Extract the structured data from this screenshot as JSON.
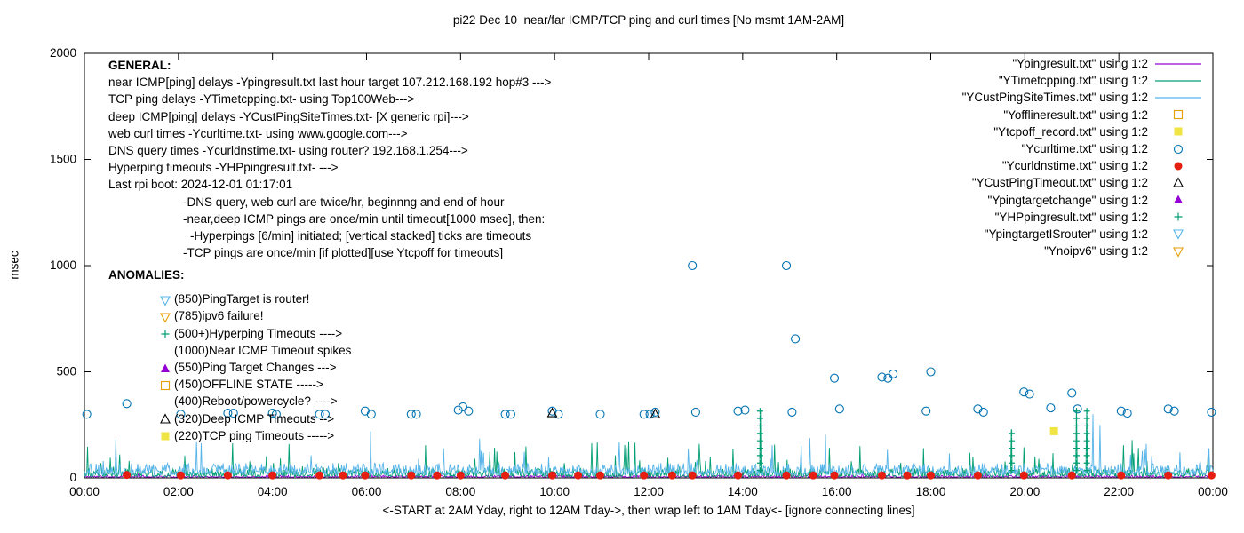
{
  "title": "pi22 Dec 10  near/far ICMP/TCP ping and curl times [No msmt 1AM-2AM]",
  "ylabel": "msec",
  "xlabel": "<-START at 2AM Yday, right to 12AM Tday->, then wrap left to 1AM Tday<- [ignore connecting lines]",
  "general": {
    "heading": "GENERAL:",
    "lines": [
      {
        "indent": 0,
        "text": "near ICMP[ping] delays -Ypingresult.txt last hour target 107.212.168.192 hop#3 --->"
      },
      {
        "indent": 0,
        "text": "TCP ping delays -YTimetcpping.txt- using Top100Web--->"
      },
      {
        "indent": 0,
        "text": "deep ICMP[ping] delays -YCustPingSiteTimes.txt- [X generic rpi]--->"
      },
      {
        "indent": 0,
        "text": "web curl times -Ycurltime.txt- using www.google.com--->"
      },
      {
        "indent": 0,
        "text": "DNS query times -Ycurldnstime.txt- using router? 192.168.1.254--->"
      },
      {
        "indent": 0,
        "text": "Hyperping timeouts -YHPpingresult.txt- --->"
      },
      {
        "indent": 0,
        "text": "Last rpi boot: 2024-12-01 01:17:01"
      },
      {
        "indent": 1,
        "text": "-DNS query, web curl are twice/hr, beginnng and end of hour"
      },
      {
        "indent": 1,
        "text": "-near,deep ICMP pings are once/min until timeout[1000 msec], then:"
      },
      {
        "indent": 2,
        "text": "-Hyperpings [6/min] initiated; [vertical stacked] ticks are timeouts"
      },
      {
        "indent": 1,
        "text": "-TCP pings are once/min [if plotted][use Ytcpoff for timeouts]"
      }
    ]
  },
  "anomalies": {
    "heading": "ANOMALIES:",
    "items": [
      {
        "marker": "triangle-down-open",
        "color": "#56B4E9",
        "text": "(850)PingTarget is router!"
      },
      {
        "marker": "triangle-down-open",
        "color": "#E69F00",
        "text": "(785)ipv6 failure!"
      },
      {
        "marker": "plus",
        "color": "#009E73",
        "text": "(500+)Hyperping Timeouts ---->"
      },
      {
        "marker": null,
        "color": null,
        "text": "(1000)Near ICMP Timeout spikes"
      },
      {
        "marker": "triangle-filled",
        "color": "#9400D3",
        "text": "(550)Ping Target Changes --->"
      },
      {
        "marker": "square-open",
        "color": "#E69F00",
        "text": "(450)OFFLINE STATE ----->"
      },
      {
        "marker": null,
        "color": null,
        "text": "(400)Reboot/powercycle? ---->"
      },
      {
        "marker": "triangle-open",
        "color": "#000000",
        "text": "(320)Deep ICMP Timeouts -->"
      },
      {
        "marker": "square-filled",
        "color": "#F0E442",
        "text": "(220)TCP ping Timeouts ----->"
      }
    ]
  },
  "legend": [
    {
      "label": "\"Ypingresult.txt\" using 1:2",
      "sample": "line",
      "color": "#9400D3"
    },
    {
      "label": "\"YTimetcpping.txt\" using 1:2",
      "sample": "line",
      "color": "#009E73"
    },
    {
      "label": "\"YCustPingSiteTimes.txt\" using 1:2",
      "sample": "line",
      "color": "#56B4E9"
    },
    {
      "label": "\"Yofflineresult.txt\" using 1:2",
      "sample": "square-open",
      "color": "#E69F00"
    },
    {
      "label": "\"Ytcpoff_record.txt\" using 1:2",
      "sample": "square-filled",
      "color": "#F0E442"
    },
    {
      "label": "\"Ycurltime.txt\" using 1:2",
      "sample": "circle-open",
      "color": "#0072B2"
    },
    {
      "label": "\"Ycurldnstime.txt\" using 1:2",
      "sample": "circle-filled",
      "color": "#E51E10"
    },
    {
      "label": "\"YCustPingTimeout.txt\" using 1:2",
      "sample": "triangle-open",
      "color": "#000000"
    },
    {
      "label": "\"Ypingtargetchange\" using 1:2",
      "sample": "triangle-filled",
      "color": "#9400D3"
    },
    {
      "label": "\"YHPpingresult.txt\" using 1:2",
      "sample": "plus",
      "color": "#009E73"
    },
    {
      "label": "\"YpingtargetISrouter\" using 1:2",
      "sample": "triangle-down-open",
      "color": "#56B4E9"
    },
    {
      "label": "\"Ynoipv6\" using 1:2",
      "sample": "triangle-down-open",
      "color": "#E69F00"
    }
  ],
  "chart_data": {
    "type": "scatter",
    "title": "pi22 Dec 10  near/far ICMP/TCP ping and curl times [No msmt 1AM-2AM]",
    "xlabel": "<-START at 2AM Yday, right to 12AM Tday->, then wrap left to 1AM Tday<- [ignore connecting lines]",
    "ylabel": "msec",
    "xlim_hours": [
      0,
      24
    ],
    "ylim": [
      0,
      2000
    ],
    "x_ticks": [
      "00:00",
      "02:00",
      "04:00",
      "06:00",
      "08:00",
      "10:00",
      "12:00",
      "14:00",
      "16:00",
      "18:00",
      "20:00",
      "22:00",
      "00:00"
    ],
    "y_ticks": [
      0,
      500,
      1000,
      1500,
      2000
    ],
    "grid": false,
    "legend_position": "top-right-inside",
    "series": [
      {
        "name": "Ypingresult.txt",
        "style": "line",
        "color": "#9400D3",
        "noise": {
          "seed": 11,
          "n": 1440,
          "base": 3,
          "amp": 9,
          "spike_prob": 0.004,
          "spike_max": 30
        },
        "spikes": []
      },
      {
        "name": "YTimetcpping.txt",
        "style": "line",
        "color": "#009E73",
        "noise": {
          "seed": 23,
          "n": 1440,
          "base": 6,
          "amp": 40,
          "spike_prob": 0.03,
          "spike_max": 160
        },
        "spikes": [
          [
            0.35,
            70
          ],
          [
            0.55,
            95
          ],
          [
            0.75,
            110
          ],
          [
            0.95,
            80
          ],
          [
            3.2,
            60
          ],
          [
            5.4,
            70
          ],
          [
            8.3,
            90
          ],
          [
            10.2,
            70
          ],
          [
            13.1,
            80
          ],
          [
            14.37,
            320
          ],
          [
            16.5,
            150
          ],
          [
            17.85,
            140
          ],
          [
            18.9,
            100
          ],
          [
            19.72,
            230
          ],
          [
            20.3,
            90
          ],
          [
            21.1,
            330
          ],
          [
            21.32,
            320
          ],
          [
            22.6,
            80
          ],
          [
            23.9,
            140
          ]
        ]
      },
      {
        "name": "YCustPingSiteTimes.txt",
        "style": "line",
        "color": "#56B4E9",
        "noise": {
          "seed": 37,
          "n": 1440,
          "base": 15,
          "amp": 55,
          "spike_prob": 0.02,
          "spike_max": 170
        },
        "spikes": [
          [
            0.4,
            80
          ],
          [
            2.2,
            60
          ],
          [
            7.1,
            90
          ],
          [
            11.38,
            170
          ],
          [
            14.6,
            90
          ],
          [
            21.45,
            300
          ],
          [
            21.6,
            250
          ],
          [
            23.3,
            120
          ]
        ]
      },
      {
        "name": "Yofflineresult.txt",
        "style": "square-open",
        "color": "#E69F00",
        "points": []
      },
      {
        "name": "Ytcpoff_record.txt",
        "style": "square-filled",
        "color": "#F0E442",
        "points": [
          [
            20.62,
            220
          ]
        ]
      },
      {
        "name": "Ycurltime.txt",
        "style": "circle-open",
        "color": "#0072B2",
        "points": [
          [
            0.05,
            300
          ],
          [
            0.9,
            350
          ],
          [
            2.05,
            300
          ],
          [
            3.05,
            305
          ],
          [
            3.17,
            305
          ],
          [
            4.0,
            305
          ],
          [
            4.08,
            300
          ],
          [
            5.0,
            300
          ],
          [
            5.12,
            300
          ],
          [
            5.97,
            315
          ],
          [
            6.1,
            300
          ],
          [
            6.95,
            300
          ],
          [
            7.06,
            300
          ],
          [
            7.95,
            320
          ],
          [
            8.05,
            335
          ],
          [
            8.17,
            315
          ],
          [
            8.95,
            300
          ],
          [
            9.07,
            300
          ],
          [
            9.95,
            315
          ],
          [
            10.08,
            300
          ],
          [
            10.97,
            300
          ],
          [
            11.9,
            300
          ],
          [
            12.03,
            300
          ],
          [
            12.14,
            310
          ],
          [
            12.93,
            1000
          ],
          [
            13.0,
            310
          ],
          [
            13.9,
            315
          ],
          [
            14.05,
            320
          ],
          [
            14.93,
            1000
          ],
          [
            15.05,
            310
          ],
          [
            15.12,
            655
          ],
          [
            15.95,
            470
          ],
          [
            16.06,
            325
          ],
          [
            16.96,
            475
          ],
          [
            17.09,
            470
          ],
          [
            17.2,
            490
          ],
          [
            17.9,
            315
          ],
          [
            18.0,
            500
          ],
          [
            19.0,
            325
          ],
          [
            19.12,
            310
          ],
          [
            19.98,
            405
          ],
          [
            20.1,
            395
          ],
          [
            20.55,
            330
          ],
          [
            21.0,
            400
          ],
          [
            21.12,
            325
          ],
          [
            22.05,
            315
          ],
          [
            22.18,
            305
          ],
          [
            23.05,
            325
          ],
          [
            23.18,
            315
          ],
          [
            23.97,
            310
          ]
        ]
      },
      {
        "name": "Ycurldnstime.txt",
        "style": "circle-filled",
        "color": "#E51E10",
        "points": [
          [
            0.9,
            14
          ],
          [
            2.05,
            12
          ],
          [
            3.05,
            12
          ],
          [
            4.0,
            12
          ],
          [
            5.0,
            12
          ],
          [
            5.5,
            12
          ],
          [
            5.97,
            12
          ],
          [
            6.95,
            12
          ],
          [
            7.5,
            12
          ],
          [
            8.0,
            12
          ],
          [
            8.95,
            12
          ],
          [
            9.95,
            12
          ],
          [
            10.5,
            12
          ],
          [
            10.97,
            12
          ],
          [
            11.9,
            12
          ],
          [
            12.5,
            12
          ],
          [
            12.93,
            12
          ],
          [
            13.9,
            12
          ],
          [
            14.93,
            12
          ],
          [
            15.5,
            12
          ],
          [
            15.95,
            12
          ],
          [
            16.96,
            12
          ],
          [
            17.5,
            12
          ],
          [
            18.0,
            12
          ],
          [
            19.0,
            12
          ],
          [
            19.98,
            12
          ],
          [
            21.0,
            12
          ],
          [
            22.05,
            12
          ],
          [
            23.05,
            12
          ],
          [
            23.97,
            12
          ]
        ]
      },
      {
        "name": "YCustPingTimeout.txt",
        "style": "triangle-open",
        "color": "#000000",
        "points": [
          [
            9.95,
            305
          ],
          [
            12.14,
            300
          ]
        ]
      },
      {
        "name": "Ypingtargetchange",
        "style": "triangle-filled",
        "color": "#9400D3",
        "points": []
      },
      {
        "name": "YHPpingresult.txt",
        "style": "plus",
        "color": "#009E73",
        "points": [],
        "stacks": [
          {
            "x": 14.37,
            "top": 320,
            "step": 35
          },
          {
            "x": 19.72,
            "top": 230,
            "step": 35
          },
          {
            "x": 21.1,
            "top": 330,
            "step": 35
          },
          {
            "x": 21.32,
            "top": 320,
            "step": 35
          }
        ]
      },
      {
        "name": "YpingtargetISrouter",
        "style": "triangle-down-open",
        "color": "#56B4E9",
        "points": []
      },
      {
        "name": "Ynoipv6",
        "style": "triangle-down-open",
        "color": "#E69F00",
        "points": []
      }
    ]
  }
}
